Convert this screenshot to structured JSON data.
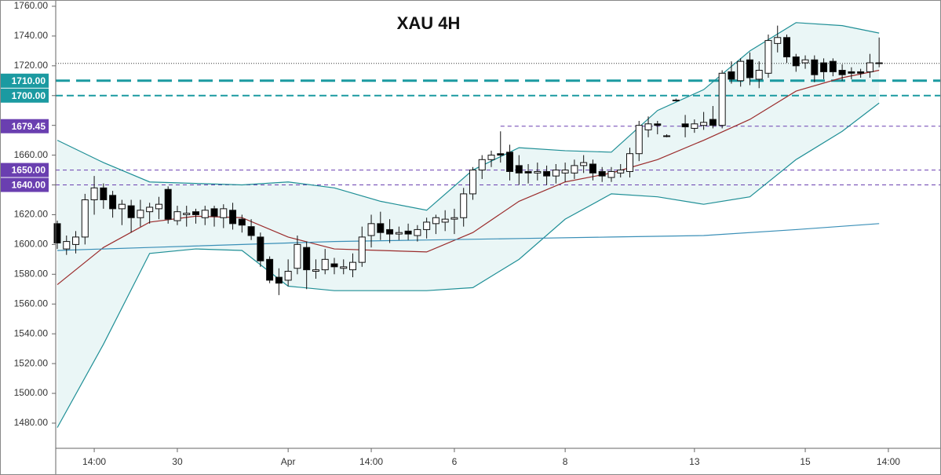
{
  "chart_data": {
    "type": "candlestick",
    "title": "XAU  4H",
    "x": [
      0,
      1,
      2,
      3,
      4,
      5,
      6,
      7,
      8,
      9,
      10,
      11,
      12,
      13,
      14,
      15,
      16,
      17,
      18,
      19,
      20,
      21,
      22,
      23,
      24,
      25,
      26,
      27,
      28,
      29,
      30,
      31,
      32,
      33,
      34,
      35,
      36,
      37,
      38,
      39,
      40,
      41,
      42,
      43,
      44,
      45,
      46,
      47,
      48,
      49,
      50,
      51,
      52,
      53,
      54,
      55,
      56,
      57,
      58,
      59,
      60,
      61,
      62,
      63,
      64,
      65,
      66,
      67,
      68,
      69,
      70,
      71,
      72,
      73,
      74,
      75,
      76,
      77,
      78,
      79,
      80,
      81,
      82,
      83,
      84,
      85,
      86,
      87,
      88,
      89
    ],
    "open": [
      1614,
      1597,
      1600,
      1605,
      1630,
      1638,
      1633,
      1624,
      1626,
      1618,
      1622,
      1624,
      1637,
      1616,
      1620,
      1622,
      1618,
      1624,
      1618,
      1623,
      1617,
      1612,
      1605,
      1590,
      1578,
      1576,
      1584,
      1598,
      1582,
      1583,
      1587,
      1584,
      1583,
      1588,
      1606,
      1614,
      1610,
      1607,
      1609,
      1606,
      1610,
      1614,
      1615,
      1617,
      1618,
      1634,
      1650,
      1657,
      1661,
      1662,
      1653,
      1649,
      1648,
      1649,
      1646,
      1648,
      1648,
      1653,
      1654,
      1649,
      1645,
      1648,
      1649,
      1661,
      1677,
      1681,
      1673,
      1697,
      1681,
      1678,
      1680,
      1684,
      1680,
      1716,
      1710,
      1724,
      1711,
      1715,
      1735,
      1739,
      1726,
      1722,
      1724,
      1722,
      1723,
      1717,
      1716,
      1716,
      1716,
      1722
    ],
    "high": [
      1616,
      1606,
      1609,
      1634,
      1646,
      1641,
      1636,
      1630,
      1630,
      1630,
      1628,
      1632,
      1639,
      1626,
      1626,
      1624,
      1626,
      1626,
      1627,
      1628,
      1620,
      1617,
      1608,
      1592,
      1584,
      1590,
      1606,
      1602,
      1590,
      1597,
      1591,
      1590,
      1594,
      1612,
      1620,
      1622,
      1617,
      1612,
      1614,
      1613,
      1618,
      1620,
      1623,
      1624,
      1638,
      1652,
      1660,
      1663,
      1676,
      1667,
      1660,
      1654,
      1655,
      1653,
      1654,
      1655,
      1657,
      1660,
      1657,
      1652,
      1652,
      1654,
      1665,
      1683,
      1686,
      1683,
      1674,
      1698,
      1687,
      1684,
      1689,
      1693,
      1717,
      1723,
      1725,
      1729,
      1723,
      1741,
      1747,
      1741,
      1728,
      1727,
      1727,
      1725,
      1725,
      1721,
      1719,
      1718,
      1728,
      1739
    ],
    "low": [
      1597,
      1593,
      1594,
      1600,
      1620,
      1624,
      1618,
      1613,
      1608,
      1612,
      1614,
      1617,
      1614,
      1613,
      1612,
      1614,
      1613,
      1612,
      1611,
      1610,
      1608,
      1603,
      1585,
      1574,
      1566,
      1572,
      1580,
      1570,
      1577,
      1580,
      1580,
      1580,
      1578,
      1585,
      1598,
      1603,
      1601,
      1603,
      1603,
      1602,
      1604,
      1607,
      1609,
      1607,
      1612,
      1630,
      1644,
      1652,
      1655,
      1643,
      1640,
      1641,
      1643,
      1640,
      1641,
      1642,
      1644,
      1648,
      1643,
      1642,
      1642,
      1645,
      1645,
      1656,
      1672,
      1674,
      1672,
      1696,
      1672,
      1675,
      1677,
      1678,
      1678,
      1708,
      1706,
      1707,
      1705,
      1712,
      1729,
      1722,
      1716,
      1718,
      1709,
      1711,
      1713,
      1710,
      1711,
      1712,
      1712,
      1719
    ],
    "close": [
      1601,
      1602,
      1605,
      1630,
      1638,
      1630,
      1624,
      1627,
      1618,
      1623,
      1625,
      1627,
      1617,
      1622,
      1621,
      1620,
      1623,
      1619,
      1624,
      1614,
      1613,
      1606,
      1589,
      1576,
      1574,
      1582,
      1600,
      1583,
      1583,
      1590,
      1585,
      1585,
      1588,
      1605,
      1614,
      1608,
      1607,
      1608,
      1607,
      1610,
      1615,
      1618,
      1617,
      1618,
      1634,
      1650,
      1657,
      1660,
      1660,
      1649,
      1648,
      1648,
      1649,
      1646,
      1650,
      1650,
      1653,
      1655,
      1648,
      1646,
      1649,
      1650,
      1661,
      1680,
      1681,
      1680,
      1673,
      1697,
      1679,
      1681,
      1682,
      1680,
      1715,
      1711,
      1723,
      1712,
      1717,
      1737,
      1739,
      1726,
      1720,
      1724,
      1714,
      1716,
      1716,
      1714,
      1715,
      1715,
      1722,
      1722
    ],
    "up_color": "#ffffff",
    "down_color": "#000000",
    "lines": [
      {
        "color": "#1f8f96",
        "x": [
          0,
          5,
          10,
          15,
          20,
          25,
          30,
          35,
          40,
          45,
          50,
          55,
          60,
          65,
          70,
          75,
          80,
          85,
          89
        ],
        "values": [
          1670,
          1655,
          1642,
          1641,
          1640,
          1642,
          1638,
          1629,
          1623,
          1650,
          1665,
          1663,
          1662,
          1690,
          1704,
          1730,
          1749,
          1747,
          1742
        ]
      },
      {
        "color": "#9b2c2c",
        "x": [
          0,
          5,
          10,
          15,
          20,
          25,
          30,
          35,
          40,
          45,
          50,
          55,
          60,
          65,
          70,
          75,
          80,
          85,
          89
        ],
        "values": [
          1573,
          1598,
          1615,
          1619,
          1618,
          1605,
          1597,
          1596,
          1595,
          1608,
          1629,
          1642,
          1648,
          1657,
          1670,
          1684,
          1703,
          1712,
          1717
        ]
      },
      {
        "color": "#1f8f96",
        "x": [
          0,
          5,
          10,
          15,
          20,
          25,
          30,
          35,
          40,
          45,
          50,
          55,
          60,
          65,
          70,
          75,
          80,
          85,
          89
        ],
        "values": [
          1477,
          1533,
          1594,
          1597,
          1596,
          1572,
          1569,
          1569,
          1569,
          1571,
          1590,
          1617,
          1634,
          1632,
          1627,
          1632,
          1657,
          1676,
          1695
        ]
      },
      {
        "color": "#3a8fb7",
        "x": [
          0,
          10,
          20,
          30,
          40,
          50,
          60,
          70,
          80,
          89
        ],
        "values": [
          1596,
          1598,
          1600,
          1602,
          1603,
          1604,
          1605,
          1606,
          1610,
          1614
        ]
      }
    ],
    "band_fill": "#eaf6f6",
    "levels": [
      {
        "value": 1721.6,
        "color": "#333333",
        "style": "dotted"
      },
      {
        "value": 1710,
        "label": "1710.00",
        "color": "#1b9aa1",
        "style": "thick-dashed"
      },
      {
        "value": 1700,
        "label": "1700.00",
        "color": "#1b9aa1",
        "style": "dashed"
      },
      {
        "value": 1679.45,
        "label": "1679.45",
        "color": "#6a3fb0",
        "style": "thin-dashed",
        "x_start": 48
      },
      {
        "value": 1650,
        "label": "1650.00",
        "color": "#6a3fb0",
        "style": "thin-dashed"
      },
      {
        "value": 1640,
        "label": "1640.00",
        "color": "#6a3fb0",
        "style": "thin-dashed"
      }
    ],
    "xlim": [
      -0.17,
      95.7
    ],
    "xticks": [
      {
        "value": 4,
        "label": "14:00"
      },
      {
        "value": 13,
        "label": "30"
      },
      {
        "value": 25,
        "label": "Apr"
      },
      {
        "value": 34,
        "label": "14:00"
      },
      {
        "value": 43,
        "label": "6"
      },
      {
        "value": 55,
        "label": "8"
      },
      {
        "value": 69,
        "label": "13"
      },
      {
        "value": 81,
        "label": "15"
      },
      {
        "value": 90,
        "label": "14:00"
      }
    ],
    "ylim": [
      1463.1,
      1764.2
    ],
    "yticks": [
      {
        "value": 1480,
        "label": "1480.00"
      },
      {
        "value": 1500,
        "label": "1500.00"
      },
      {
        "value": 1520,
        "label": "1520.00"
      },
      {
        "value": 1540,
        "label": "1540.00"
      },
      {
        "value": 1560,
        "label": "1560.00"
      },
      {
        "value": 1580,
        "label": "1580.00"
      },
      {
        "value": 1600,
        "label": "1600.00"
      },
      {
        "value": 1620,
        "label": "1620.00"
      },
      {
        "value": 1640,
        "label": "1640.00"
      },
      {
        "value": 1660,
        "label": "1660.00"
      },
      {
        "value": 1680,
        "label": "1680.00"
      },
      {
        "value": 1700,
        "label": "1700.00"
      },
      {
        "value": 1720,
        "label": "1720.00"
      },
      {
        "value": 1740,
        "label": "1740.00"
      },
      {
        "value": 1760,
        "label": "1760.00"
      }
    ]
  }
}
